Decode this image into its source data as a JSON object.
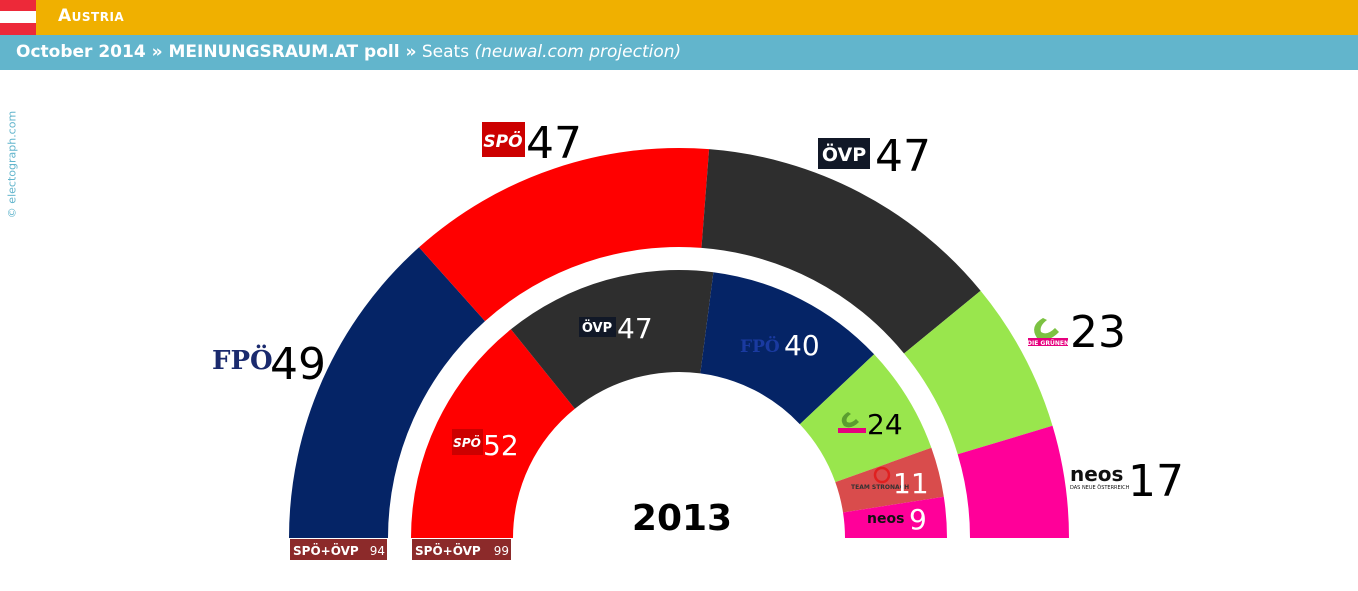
{
  "header": {
    "country": "Austria",
    "subtitle_bold": "October 2014 » MEINUNGSRAUM.AT poll »",
    "subtitle_plain": " Seats ",
    "subtitle_italic": "(neuwal.com projection)"
  },
  "credit": "© electograph.com",
  "colors": {
    "header_bg": "#f0b000",
    "subheader_bg": "#62b5cc",
    "FPÖ": "#052466",
    "SPÖ": "#ff0000",
    "ÖVP": "#2e2e2e",
    "Grüne": "#99e64d",
    "NEOS": "#ff0099",
    "Team Stronach": "#d94c4c",
    "coalition_box": "#8c2a2a"
  },
  "chart_data": [
    {
      "type": "pie",
      "subtype": "parliament-half-donut",
      "title": "October 2014 poll (seats)",
      "parties": [
        "FPÖ",
        "SPÖ",
        "ÖVP",
        "Grüne",
        "NEOS"
      ],
      "values": [
        49,
        47,
        47,
        23,
        17
      ],
      "total": 183
    },
    {
      "type": "pie",
      "subtype": "parliament-half-donut",
      "title": "2013",
      "parties": [
        "SPÖ",
        "ÖVP",
        "FPÖ",
        "Grüne",
        "Team Stronach",
        "NEOS"
      ],
      "values": [
        52,
        47,
        40,
        24,
        11,
        9
      ],
      "total": 183
    }
  ],
  "labels": {
    "outer": [
      "49",
      "47",
      "47",
      "23",
      "17"
    ],
    "inner": [
      "52",
      "47",
      "40",
      "24",
      "11",
      "9"
    ],
    "inner_year": "2013"
  },
  "logos": {
    "fpo": "FPÖ",
    "spo": "SPÖ",
    "ovp": "ÖVP",
    "grune": "DIE GRÜNEN",
    "neos": "neos",
    "neos_sub": "DAS NEUE ÖSTERREICH",
    "stronach": "TEAM STRONACH"
  },
  "coalitions": [
    {
      "label": "SPÖ+ÖVP",
      "value": "94"
    },
    {
      "label": "SPÖ+ÖVP",
      "value": "99"
    }
  ]
}
